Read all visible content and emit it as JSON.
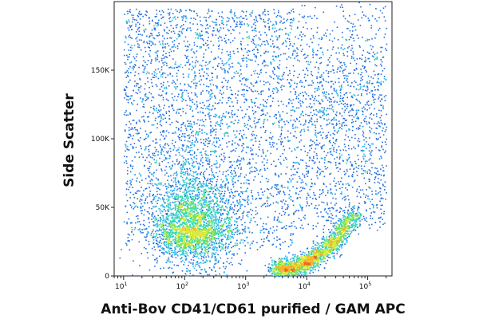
{
  "chart_data": {
    "type": "scatter",
    "subtype": "flow-cytometry density plot",
    "xlabel": "Anti-Bov CD41/CD61 purified / GAM APC",
    "ylabel": "Side Scatter",
    "xscale": "log",
    "xlim": [
      7,
      250000
    ],
    "ylim": [
      0,
      200000
    ],
    "x_ticks": [
      {
        "value": 10,
        "base": "10",
        "exp": "1"
      },
      {
        "value": 100,
        "base": "10",
        "exp": "2"
      },
      {
        "value": 1000,
        "base": "10",
        "exp": "3"
      },
      {
        "value": 10000,
        "base": "10",
        "exp": "4"
      },
      {
        "value": 100000,
        "base": "10",
        "exp": "5"
      }
    ],
    "y_ticks": [
      {
        "value": 0,
        "label": "0"
      },
      {
        "value": 50000,
        "label": "50K"
      },
      {
        "value": 100000,
        "label": "100K"
      },
      {
        "value": 150000,
        "label": "150K"
      }
    ],
    "colormap": [
      "#1f1fbf",
      "#1f6fe0",
      "#2fb8e8",
      "#37d9b0",
      "#7ee04a",
      "#d8e830",
      "#f2b42a",
      "#ee6a1e"
    ],
    "populations": [
      {
        "description": "dense low-fluorescence cluster",
        "x_center": 130,
        "y_center": 35000,
        "x_spread_decades": 0.35,
        "y_spread": 17000,
        "weight": 0.32
      },
      {
        "description": "bright tail (high fluorescence, low side scatter)",
        "x_start": 3000,
        "x_end": 60000,
        "y_start": 5000,
        "y_end": 45000,
        "weight": 0.2
      },
      {
        "description": "diffuse background",
        "x_range": [
          10,
          200000
        ],
        "y_range": [
          0,
          195000
        ],
        "weight": 0.48
      }
    ]
  }
}
